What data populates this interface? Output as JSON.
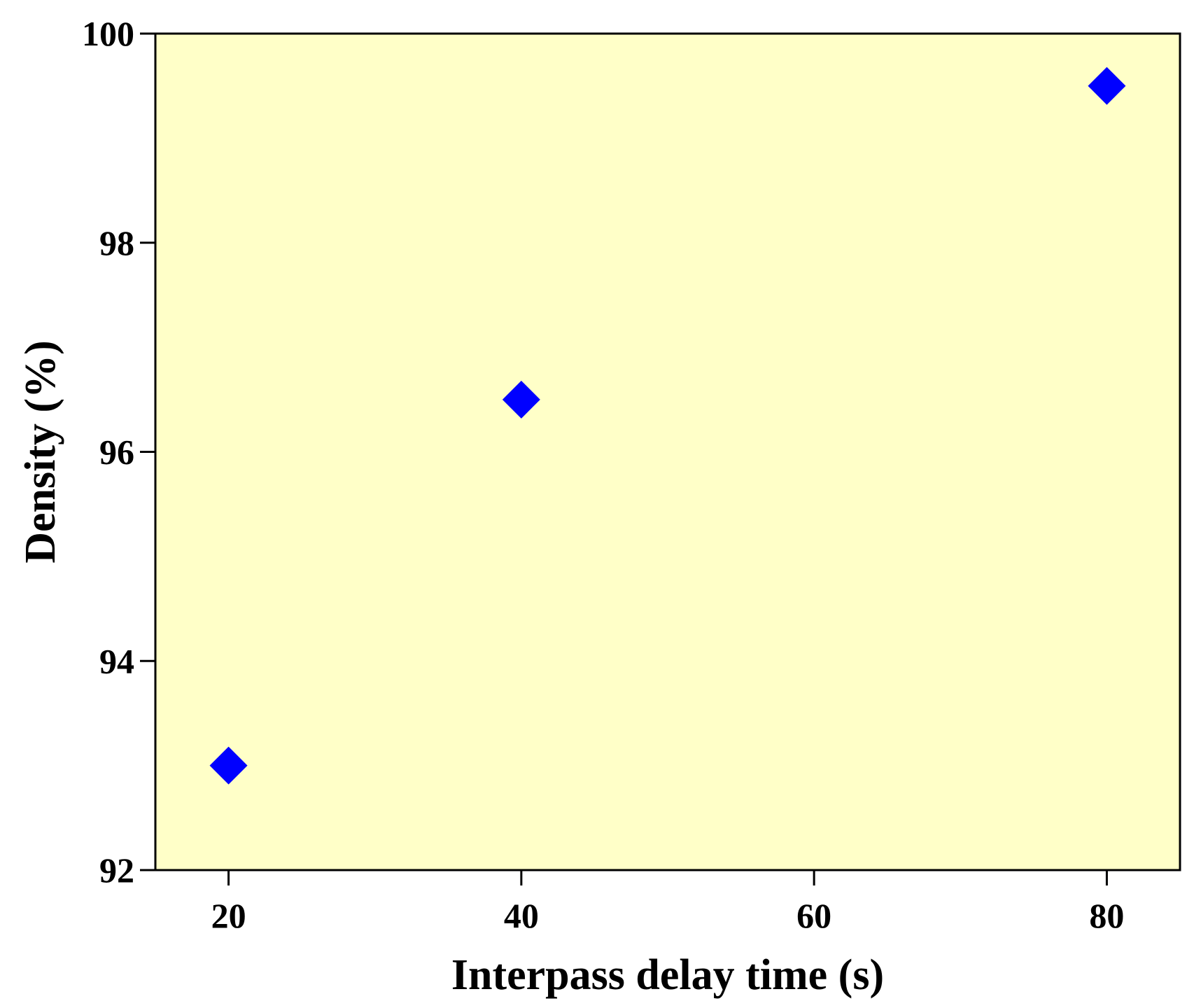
{
  "chart_data": {
    "type": "scatter",
    "title": "",
    "xlabel": "Interpass delay time (s)",
    "ylabel": "Density (%)",
    "xlim": [
      15,
      85
    ],
    "ylim": [
      92,
      100
    ],
    "x_ticks": [
      20,
      40,
      60,
      80
    ],
    "y_ticks": [
      92,
      94,
      96,
      98,
      100
    ],
    "x_tick_labels": [
      "20",
      "40",
      "60",
      "80"
    ],
    "y_tick_labels": [
      "92",
      "94",
      "96",
      "98",
      "100"
    ],
    "grid": false,
    "marker": "diamond",
    "colors": {
      "plot_background": "#ffffc8",
      "marker": "#0000ff",
      "axis": "#000000"
    },
    "series": [
      {
        "x": [
          20,
          40,
          80
        ],
        "y": [
          93.0,
          96.5,
          99.5
        ]
      }
    ]
  }
}
